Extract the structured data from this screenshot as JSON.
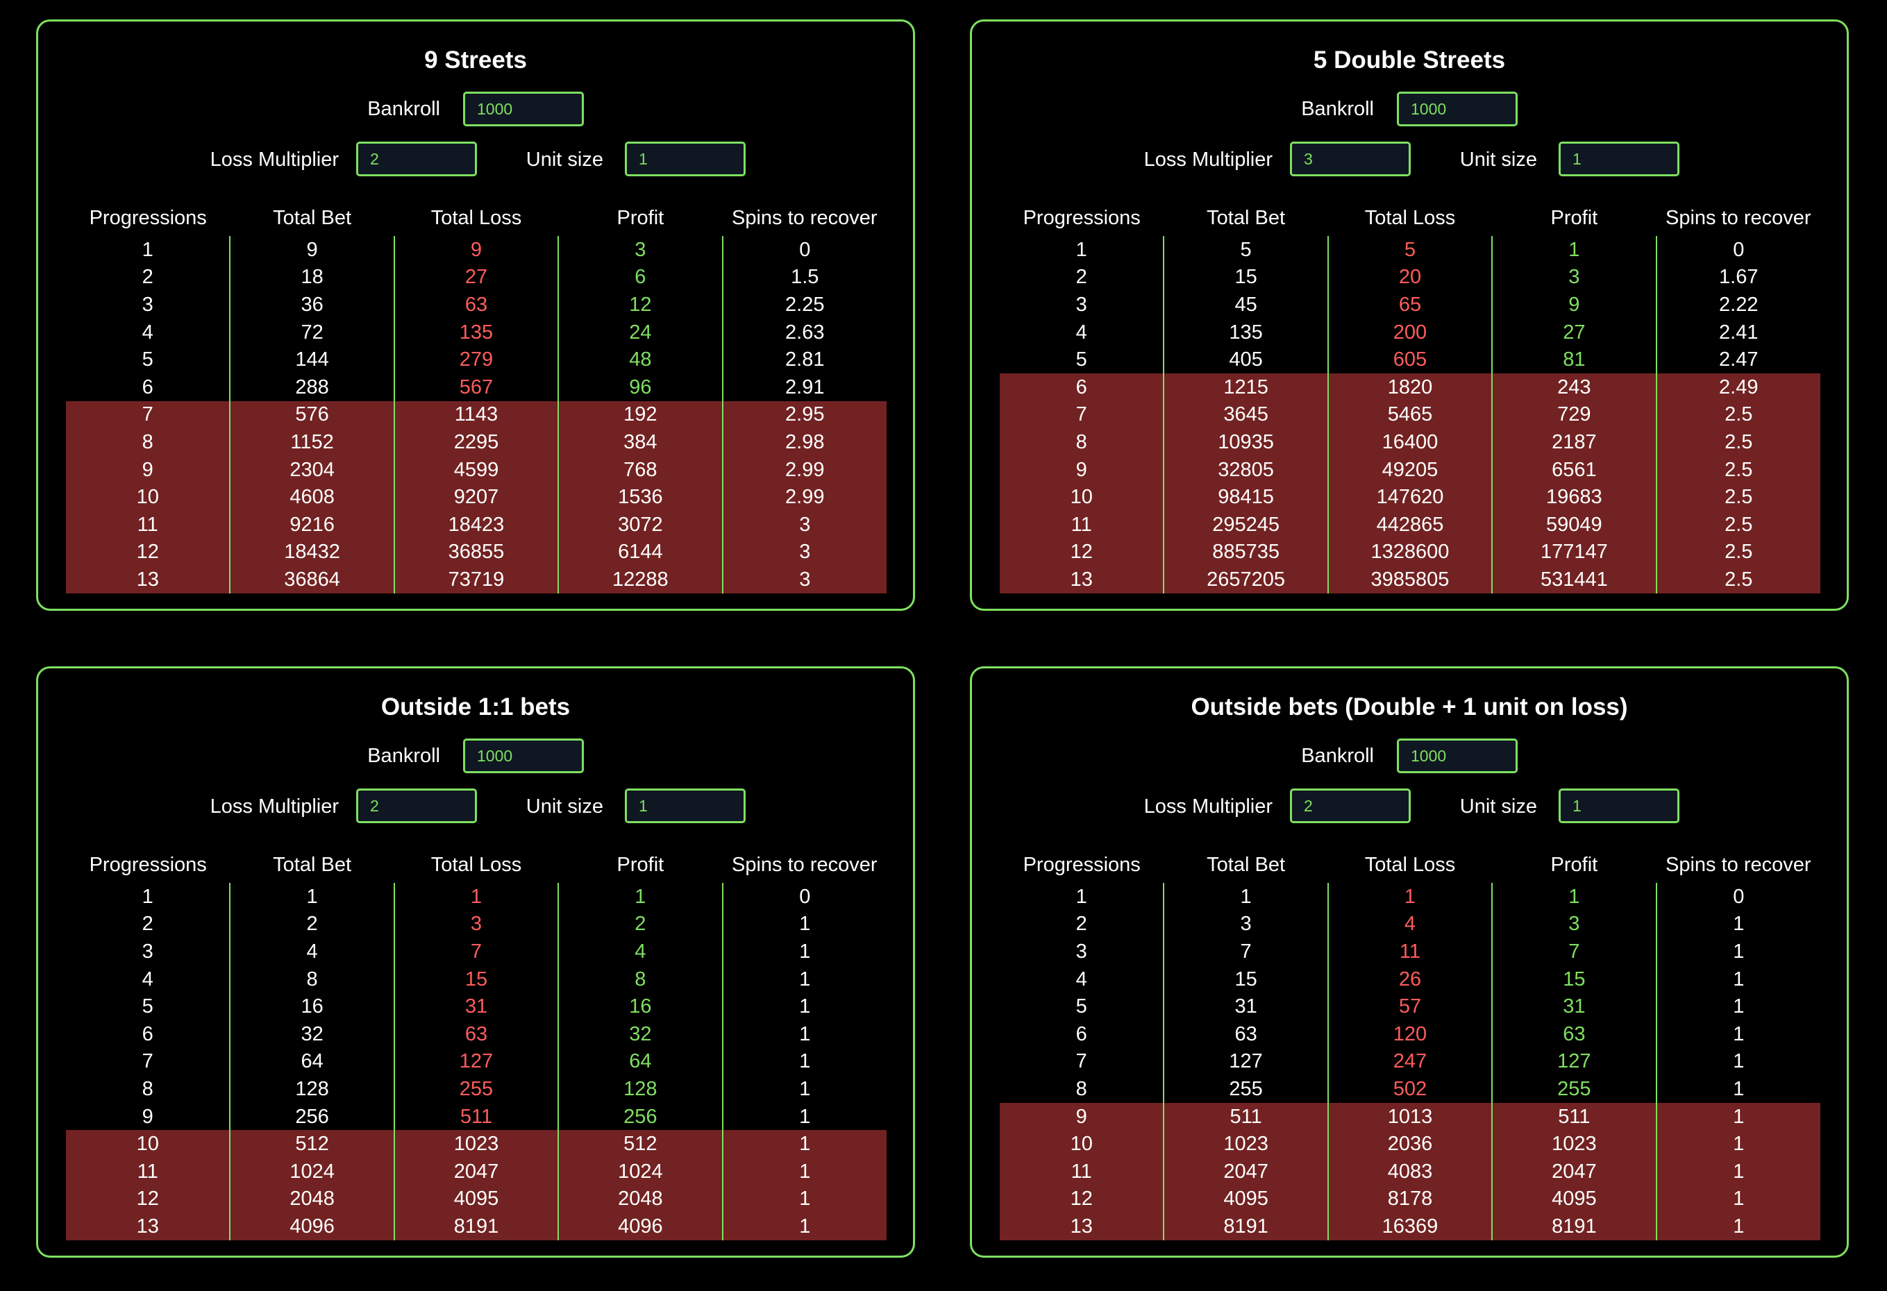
{
  "colors": {
    "accent_green": "#7ee060",
    "loss_red": "#ff5c5c",
    "danger_row_bg": "#722222",
    "background": "#000000"
  },
  "labels": {
    "bankroll": "Bankroll",
    "loss_multiplier": "Loss Multiplier",
    "unit_size": "Unit size"
  },
  "columns": [
    "Progressions",
    "Total Bet",
    "Total Loss",
    "Profit",
    "Spins to recover"
  ],
  "panels": [
    {
      "title": "9 Streets",
      "bankroll": "1000",
      "loss_multiplier": "2",
      "unit_size": "1",
      "danger_from_row": 7,
      "rows": [
        [
          "1",
          "9",
          "9",
          "3",
          "0"
        ],
        [
          "2",
          "18",
          "27",
          "6",
          "1.5"
        ],
        [
          "3",
          "36",
          "63",
          "12",
          "2.25"
        ],
        [
          "4",
          "72",
          "135",
          "24",
          "2.63"
        ],
        [
          "5",
          "144",
          "279",
          "48",
          "2.81"
        ],
        [
          "6",
          "288",
          "567",
          "96",
          "2.91"
        ],
        [
          "7",
          "576",
          "1143",
          "192",
          "2.95"
        ],
        [
          "8",
          "1152",
          "2295",
          "384",
          "2.98"
        ],
        [
          "9",
          "2304",
          "4599",
          "768",
          "2.99"
        ],
        [
          "10",
          "4608",
          "9207",
          "1536",
          "2.99"
        ],
        [
          "11",
          "9216",
          "18423",
          "3072",
          "3"
        ],
        [
          "12",
          "18432",
          "36855",
          "6144",
          "3"
        ],
        [
          "13",
          "36864",
          "73719",
          "12288",
          "3"
        ]
      ]
    },
    {
      "title": "5 Double Streets",
      "bankroll": "1000",
      "loss_multiplier": "3",
      "unit_size": "1",
      "danger_from_row": 6,
      "rows": [
        [
          "1",
          "5",
          "5",
          "1",
          "0"
        ],
        [
          "2",
          "15",
          "20",
          "3",
          "1.67"
        ],
        [
          "3",
          "45",
          "65",
          "9",
          "2.22"
        ],
        [
          "4",
          "135",
          "200",
          "27",
          "2.41"
        ],
        [
          "5",
          "405",
          "605",
          "81",
          "2.47"
        ],
        [
          "6",
          "1215",
          "1820",
          "243",
          "2.49"
        ],
        [
          "7",
          "3645",
          "5465",
          "729",
          "2.5"
        ],
        [
          "8",
          "10935",
          "16400",
          "2187",
          "2.5"
        ],
        [
          "9",
          "32805",
          "49205",
          "6561",
          "2.5"
        ],
        [
          "10",
          "98415",
          "147620",
          "19683",
          "2.5"
        ],
        [
          "11",
          "295245",
          "442865",
          "59049",
          "2.5"
        ],
        [
          "12",
          "885735",
          "1328600",
          "177147",
          "2.5"
        ],
        [
          "13",
          "2657205",
          "3985805",
          "531441",
          "2.5"
        ]
      ]
    },
    {
      "title": "Outside 1:1 bets",
      "bankroll": "1000",
      "loss_multiplier": "2",
      "unit_size": "1",
      "danger_from_row": 10,
      "rows": [
        [
          "1",
          "1",
          "1",
          "1",
          "0"
        ],
        [
          "2",
          "2",
          "3",
          "2",
          "1"
        ],
        [
          "3",
          "4",
          "7",
          "4",
          "1"
        ],
        [
          "4",
          "8",
          "15",
          "8",
          "1"
        ],
        [
          "5",
          "16",
          "31",
          "16",
          "1"
        ],
        [
          "6",
          "32",
          "63",
          "32",
          "1"
        ],
        [
          "7",
          "64",
          "127",
          "64",
          "1"
        ],
        [
          "8",
          "128",
          "255",
          "128",
          "1"
        ],
        [
          "9",
          "256",
          "511",
          "256",
          "1"
        ],
        [
          "10",
          "512",
          "1023",
          "512",
          "1"
        ],
        [
          "11",
          "1024",
          "2047",
          "1024",
          "1"
        ],
        [
          "12",
          "2048",
          "4095",
          "2048",
          "1"
        ],
        [
          "13",
          "4096",
          "8191",
          "4096",
          "1"
        ]
      ]
    },
    {
      "title": "Outside bets (Double + 1 unit on loss)",
      "bankroll": "1000",
      "loss_multiplier": "2",
      "unit_size": "1",
      "danger_from_row": 9,
      "rows": [
        [
          "1",
          "1",
          "1",
          "1",
          "0"
        ],
        [
          "2",
          "3",
          "4",
          "3",
          "1"
        ],
        [
          "3",
          "7",
          "11",
          "7",
          "1"
        ],
        [
          "4",
          "15",
          "26",
          "15",
          "1"
        ],
        [
          "5",
          "31",
          "57",
          "31",
          "1"
        ],
        [
          "6",
          "63",
          "120",
          "63",
          "1"
        ],
        [
          "7",
          "127",
          "247",
          "127",
          "1"
        ],
        [
          "8",
          "255",
          "502",
          "255",
          "1"
        ],
        [
          "9",
          "511",
          "1013",
          "511",
          "1"
        ],
        [
          "10",
          "1023",
          "2036",
          "1023",
          "1"
        ],
        [
          "11",
          "2047",
          "4083",
          "2047",
          "1"
        ],
        [
          "12",
          "4095",
          "8178",
          "4095",
          "1"
        ],
        [
          "13",
          "8191",
          "16369",
          "8191",
          "1"
        ]
      ]
    }
  ]
}
